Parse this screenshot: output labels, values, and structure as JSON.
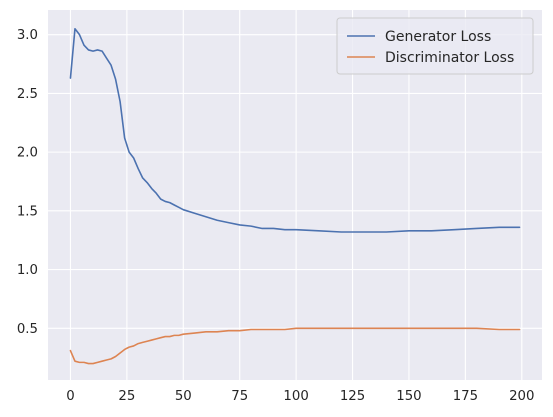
{
  "chart_data": {
    "type": "line",
    "title": "",
    "xlabel": "",
    "ylabel": "",
    "xlim": [
      -9.95,
      208.95
    ],
    "ylim": [
      0.06,
      3.21
    ],
    "xticks": [
      0,
      25,
      50,
      75,
      100,
      125,
      150,
      175,
      200
    ],
    "yticks": [
      0.5,
      1.0,
      1.5,
      2.0,
      2.5,
      3.0
    ],
    "xtick_labels": [
      "0",
      "25",
      "50",
      "75",
      "100",
      "125",
      "150",
      "175",
      "200"
    ],
    "ytick_labels": [
      "0.5",
      "1.0",
      "1.5",
      "2.0",
      "2.5",
      "3.0"
    ],
    "grid": true,
    "legend_position": "top-right",
    "x": [
      0,
      2,
      4,
      6,
      8,
      10,
      12,
      14,
      16,
      18,
      20,
      22,
      24,
      26,
      28,
      30,
      32,
      34,
      36,
      38,
      40,
      42,
      44,
      46,
      48,
      50,
      55,
      60,
      65,
      70,
      75,
      80,
      85,
      90,
      95,
      100,
      110,
      120,
      130,
      140,
      150,
      160,
      170,
      180,
      190,
      199
    ],
    "series": [
      {
        "name": "Generator Loss",
        "color": "#4c72b0",
        "values": [
          2.63,
          3.05,
          3.0,
          2.91,
          2.87,
          2.86,
          2.87,
          2.86,
          2.8,
          2.74,
          2.62,
          2.43,
          2.12,
          2.0,
          1.95,
          1.86,
          1.78,
          1.74,
          1.69,
          1.65,
          1.6,
          1.58,
          1.57,
          1.55,
          1.53,
          1.51,
          1.48,
          1.45,
          1.42,
          1.4,
          1.38,
          1.37,
          1.35,
          1.35,
          1.34,
          1.34,
          1.33,
          1.32,
          1.32,
          1.32,
          1.33,
          1.33,
          1.34,
          1.35,
          1.36,
          1.36
        ]
      },
      {
        "name": "Discriminator Loss",
        "color": "#dd8452",
        "values": [
          0.31,
          0.22,
          0.21,
          0.21,
          0.2,
          0.2,
          0.21,
          0.22,
          0.23,
          0.24,
          0.26,
          0.29,
          0.32,
          0.34,
          0.35,
          0.37,
          0.38,
          0.39,
          0.4,
          0.41,
          0.42,
          0.43,
          0.43,
          0.44,
          0.44,
          0.45,
          0.46,
          0.47,
          0.47,
          0.48,
          0.48,
          0.49,
          0.49,
          0.49,
          0.49,
          0.5,
          0.5,
          0.5,
          0.5,
          0.5,
          0.5,
          0.5,
          0.5,
          0.5,
          0.49,
          0.49
        ]
      }
    ]
  },
  "colors": {
    "plot_background": "#eaeaf2",
    "grid": "#ffffff",
    "text": "#262626"
  }
}
